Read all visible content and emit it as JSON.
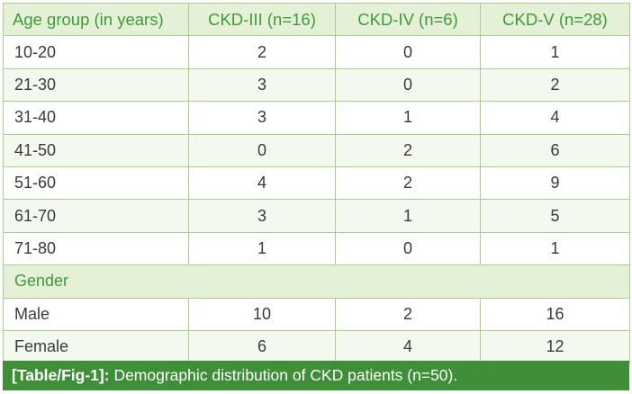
{
  "table": {
    "headers": [
      "Age group (in years)",
      "CKD-III (n=16)",
      "CKD-IV (n=6)",
      "CKD-V (n=28)"
    ],
    "age_rows": [
      [
        "10-20",
        "2",
        "0",
        "1"
      ],
      [
        "21-30",
        "3",
        "0",
        "2"
      ],
      [
        "31-40",
        "3",
        "1",
        "4"
      ],
      [
        "41-50",
        "0",
        "2",
        "6"
      ],
      [
        "51-60",
        "4",
        "2",
        "9"
      ],
      [
        "61-70",
        "3",
        "1",
        "5"
      ],
      [
        "71-80",
        "1",
        "0",
        "1"
      ]
    ],
    "section_label": "Gender",
    "gender_rows": [
      [
        "Male",
        "10",
        "2",
        "16"
      ],
      [
        "Female",
        "6",
        "4",
        "12"
      ]
    ]
  },
  "caption": {
    "label": "[Table/Fig-1]:",
    "text": "Demographic distribution of CKD patients (n=50)."
  },
  "colors": {
    "header_bg": "#e4f1d6",
    "header_text": "#3f9a3c",
    "border": "#a9cf8c",
    "caption_bg": "#3e8f37"
  }
}
